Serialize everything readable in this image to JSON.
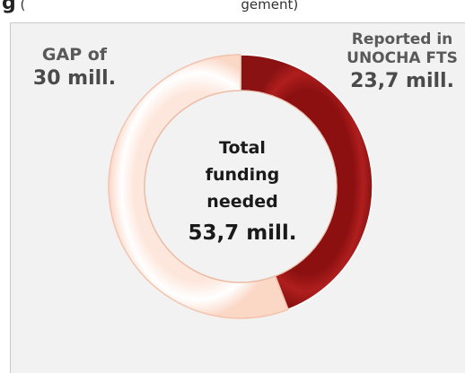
{
  "header": {
    "bold_text": "g",
    "paren_text": "(",
    "paren_tail": "gement)"
  },
  "chart_data": {
    "type": "pie",
    "categories": [
      "Reported in UNOCHA FTS",
      "GAP of"
    ],
    "values": [
      23.7,
      30
    ],
    "center_text": [
      "Total",
      "funding",
      "needed"
    ],
    "center_value": "53,7 mill.",
    "colors": {
      "reported": "#a81c1c",
      "gap": "#ffffff"
    },
    "labels": {
      "gap": {
        "line1": "GAP of",
        "line2": "30 mill."
      },
      "reported": {
        "line1": "Reported in",
        "line2": "UNOCHA FTS",
        "line3": "23,7 mill."
      }
    }
  }
}
